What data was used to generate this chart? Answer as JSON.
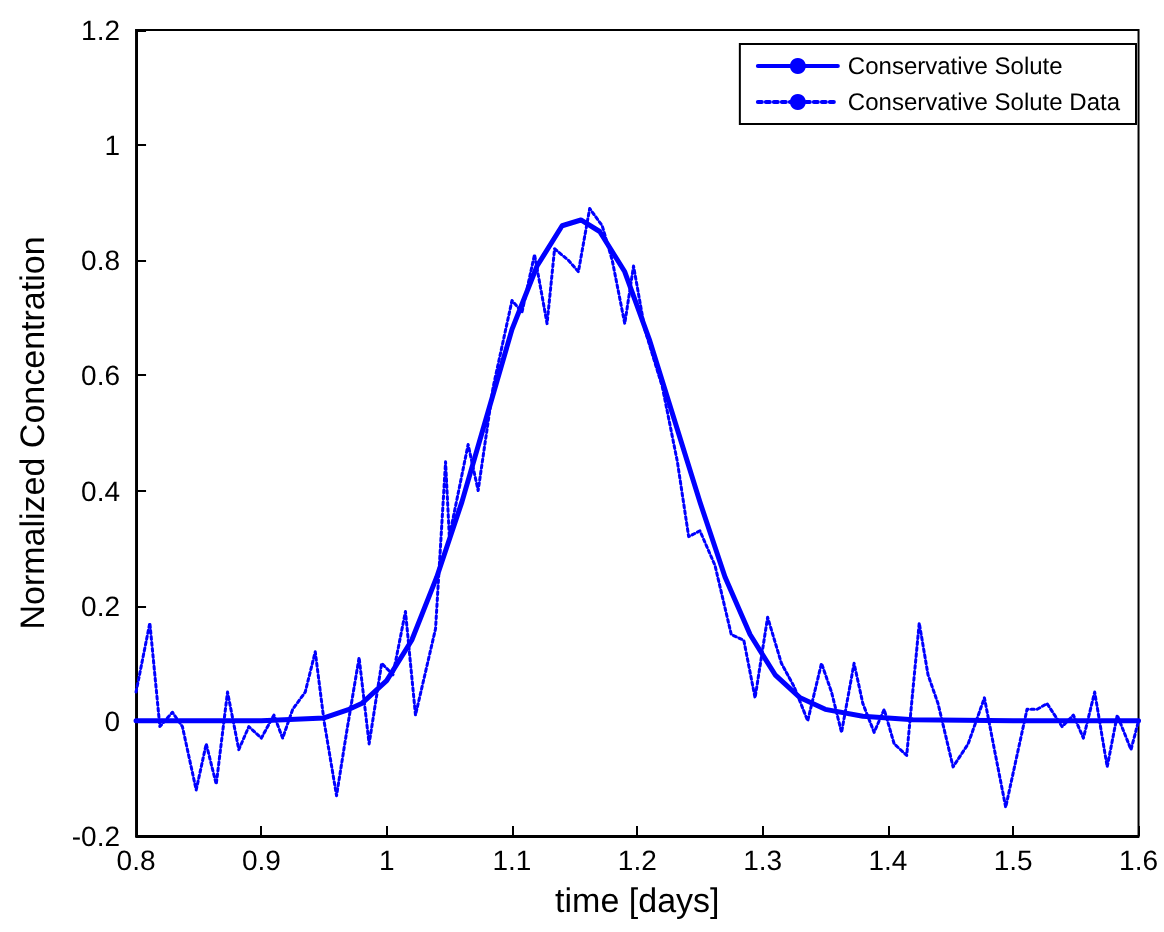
{
  "chart_data": {
    "type": "line",
    "xlabel": "time [days]",
    "ylabel": "Normalized Concentration",
    "xlim": [
      0.8,
      1.6
    ],
    "ylim": [
      -0.2,
      1.2
    ],
    "xticks": [
      0.8,
      0.9,
      1,
      1.1,
      1.2,
      1.3,
      1.4,
      1.5,
      1.6
    ],
    "yticks": [
      -0.2,
      0,
      0.2,
      0.4,
      0.6,
      0.8,
      1,
      1.2
    ],
    "grid": false,
    "legend": "top right",
    "marker": "none",
    "series": [
      {
        "name": "Conservative Solute",
        "color": "#0000ff",
        "line_style": "solid",
        "x": [
          0.8,
          0.9,
          0.95,
          0.97,
          0.98,
          1.0,
          1.02,
          1.04,
          1.06,
          1.08,
          1.1,
          1.12,
          1.14,
          1.155,
          1.17,
          1.19,
          1.21,
          1.23,
          1.25,
          1.27,
          1.29,
          1.31,
          1.33,
          1.35,
          1.38,
          1.42,
          1.5,
          1.6
        ],
        "values": [
          0,
          0,
          0.005,
          0.02,
          0.03,
          0.07,
          0.14,
          0.25,
          0.38,
          0.53,
          0.68,
          0.79,
          0.86,
          0.87,
          0.85,
          0.78,
          0.66,
          0.52,
          0.38,
          0.25,
          0.15,
          0.08,
          0.04,
          0.02,
          0.008,
          0.002,
          0,
          0
        ]
      },
      {
        "name": "Conservative Solute Data",
        "color": "#0000ff",
        "line_style": "dotted",
        "x": [
          0.8,
          0.811,
          0.819,
          0.829,
          0.837,
          0.848,
          0.856,
          0.864,
          0.873,
          0.882,
          0.89,
          0.9,
          0.91,
          0.917,
          0.925,
          0.935,
          0.943,
          0.95,
          0.96,
          0.968,
          0.978,
          0.986,
          0.996,
          1.005,
          1.015,
          1.023,
          1.039,
          1.047,
          1.05,
          1.065,
          1.073,
          1.085,
          1.1,
          1.108,
          1.118,
          1.128,
          1.134,
          1.145,
          1.153,
          1.162,
          1.172,
          1.18,
          1.19,
          1.197,
          1.206,
          1.22,
          1.232,
          1.241,
          1.25,
          1.262,
          1.275,
          1.285,
          1.294,
          1.304,
          1.315,
          1.325,
          1.336,
          1.347,
          1.355,
          1.363,
          1.373,
          1.38,
          1.389,
          1.397,
          1.405,
          1.415,
          1.425,
          1.432,
          1.44,
          1.452,
          1.464,
          1.477,
          1.485,
          1.494,
          1.503,
          1.511,
          1.519,
          1.527,
          1.539,
          1.548,
          1.556,
          1.565,
          1.575,
          1.583,
          1.594,
          1.6
        ],
        "values": [
          0.05,
          0.17,
          -0.01,
          0.015,
          -0.01,
          -0.12,
          -0.04,
          -0.11,
          0.05,
          -0.05,
          -0.01,
          -0.03,
          0.01,
          -0.03,
          0.02,
          0.05,
          0.12,
          0,
          -0.13,
          -0.02,
          0.11,
          -0.04,
          0.1,
          0.08,
          0.19,
          0.01,
          0.16,
          0.45,
          0.32,
          0.48,
          0.4,
          0.58,
          0.73,
          0.71,
          0.81,
          0.69,
          0.82,
          0.8,
          0.78,
          0.89,
          0.86,
          0.8,
          0.69,
          0.79,
          0.68,
          0.58,
          0.45,
          0.32,
          0.33,
          0.27,
          0.15,
          0.14,
          0.04,
          0.18,
          0.1,
          0.06,
          0,
          0.1,
          0.05,
          -0.02,
          0.1,
          0.03,
          -0.02,
          0.02,
          -0.04,
          -0.06,
          0.17,
          0.08,
          0.03,
          -0.08,
          -0.04,
          0.04,
          -0.05,
          -0.15,
          -0.06,
          0.02,
          0.02,
          0.03,
          -0.01,
          0.01,
          -0.03,
          0.05,
          -0.08,
          0.01,
          -0.05,
          0
        ]
      }
    ]
  }
}
